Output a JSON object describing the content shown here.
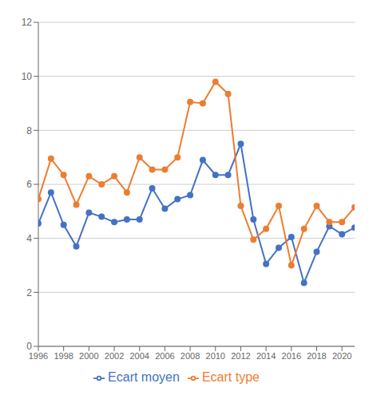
{
  "chart_data": {
    "type": "line",
    "x": [
      1996,
      1997,
      1998,
      1999,
      2000,
      2001,
      2002,
      2003,
      2004,
      2005,
      2006,
      2007,
      2008,
      2009,
      2010,
      2011,
      2012,
      2013,
      2014,
      2015,
      2016,
      2017,
      2018,
      2019,
      2020,
      2021
    ],
    "series": [
      {
        "name": "Ecart moyen",
        "color": "#4472c4",
        "marker": "circle",
        "values": [
          4.55,
          5.7,
          4.5,
          3.7,
          4.95,
          4.8,
          4.6,
          4.7,
          4.7,
          5.85,
          5.1,
          5.45,
          5.6,
          6.9,
          6.35,
          6.35,
          7.5,
          4.7,
          3.05,
          3.65,
          4.05,
          2.35,
          3.5,
          4.45,
          4.15,
          4.4
        ]
      },
      {
        "name": "Ecart type",
        "color": "#ed7d31",
        "marker": "circle",
        "values": [
          5.45,
          6.95,
          6.35,
          5.25,
          6.3,
          6.0,
          6.3,
          5.7,
          7.0,
          6.55,
          6.55,
          7.0,
          9.05,
          9.0,
          9.8,
          9.35,
          5.2,
          3.95,
          4.35,
          5.2,
          3.0,
          4.35,
          5.2,
          4.6,
          4.6,
          5.15
        ]
      }
    ],
    "xlim": [
      1996,
      2021
    ],
    "xticks": [
      1996,
      1998,
      2000,
      2002,
      2004,
      2006,
      2008,
      2010,
      2012,
      2014,
      2016,
      2018,
      2020
    ],
    "ylim": [
      0,
      12
    ],
    "yticks": [
      0,
      2,
      4,
      6,
      8,
      10,
      12
    ],
    "grid": true,
    "legend": "bottom"
  }
}
